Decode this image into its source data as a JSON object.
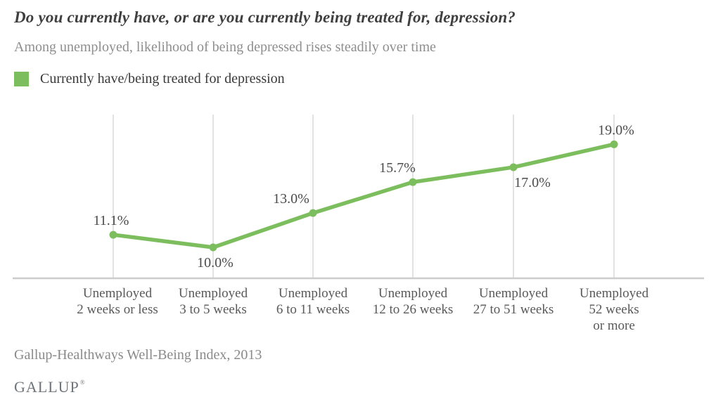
{
  "header": {
    "title": "Do you currently have, or are you currently being treated for, depression?",
    "subtitle": "Among unemployed, likelihood of being depressed rises steadily over time"
  },
  "legend": {
    "label": "Currently have/being treated for depression",
    "swatch_color": "#7cbe5e"
  },
  "chart_data": {
    "type": "line",
    "title": "Do you currently have, or are you currently being treated for, depression?",
    "subtitle": "Among unemployed, likelihood of being depressed rises steadily over time",
    "categories": [
      "Unemployed 2 weeks or less",
      "Unemployed 3 to 5 weeks",
      "Unemployed 6 to 11 weeks",
      "Unemployed 12 to 26 weeks",
      "Unemployed 27 to 51 weeks",
      "Unemployed 52 weeks or more"
    ],
    "category_lines": [
      [
        "Unemployed",
        "2 weeks or less"
      ],
      [
        "Unemployed",
        "3 to 5 weeks"
      ],
      [
        "Unemployed",
        "6 to 11 weeks"
      ],
      [
        "Unemployed",
        "12 to 26 weeks"
      ],
      [
        "Unemployed",
        "27 to 51 weeks"
      ],
      [
        "Unemployed",
        "52 weeks",
        "or more"
      ]
    ],
    "series": [
      {
        "name": "Currently have/being treated for depression",
        "values": [
          11.1,
          10.0,
          13.0,
          15.7,
          17.0,
          19.0
        ]
      }
    ],
    "point_labels": [
      "11.1%",
      "10.0%",
      "13.0%",
      "15.7%",
      "17.0%",
      "19.0%"
    ],
    "label_side": [
      "above",
      "below",
      "above",
      "above",
      "below",
      "above"
    ],
    "label_dx": [
      -3,
      3,
      -31,
      -22,
      27,
      3
    ],
    "line_color": "#7cbe5e",
    "gridline_color": "#d8d8d8",
    "axis_color": "#cccccc",
    "grid": "vertical-only",
    "legend_position": "top-left",
    "ylim": [
      7.3,
      21.6
    ],
    "xlabel": "",
    "ylabel": ""
  },
  "footer": {
    "source": "Gallup-Healthways Well-Being Index, 2013",
    "logo": "GALLUP",
    "logo_mark": "®"
  }
}
